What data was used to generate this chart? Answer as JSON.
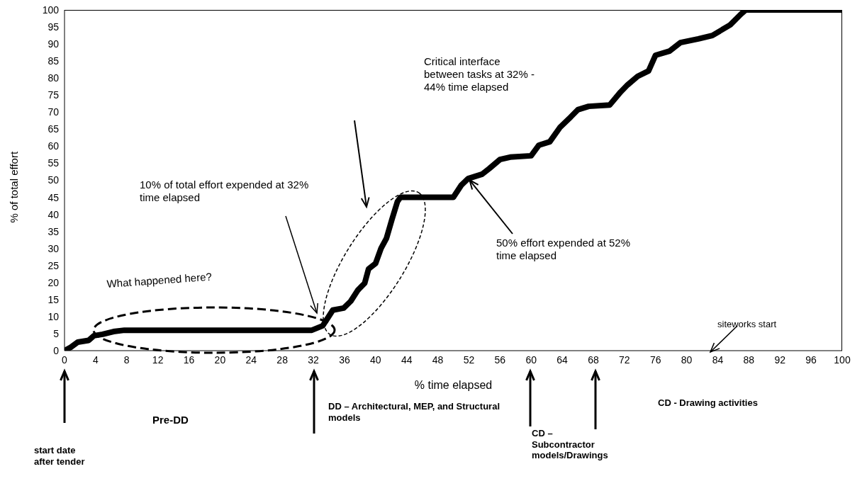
{
  "chart_data": {
    "type": "line",
    "xlabel": "% time elapsed",
    "ylabel": "% of total effort",
    "x": [
      0,
      0.8,
      1.7,
      3.1,
      3.8,
      4.9,
      6.3,
      7.7,
      31.8,
      33.2,
      33.8,
      34.5,
      35.9,
      36.8,
      37.7,
      38.6,
      39.1,
      40,
      40.7,
      41.4,
      42.1,
      42.8,
      43.2,
      50,
      51,
      51.9,
      53.7,
      54.6,
      56,
      57.3,
      60,
      61,
      62.4,
      63.7,
      65.1,
      66,
      67.4,
      70.1,
      71.5,
      72.4,
      73.7,
      75.1,
      76,
      77.8,
      79.2,
      81.5,
      83.3,
      85.6,
      87,
      87.6,
      100
    ],
    "series": [
      {
        "color": "#000000",
        "values": [
          0,
          1,
          2.5,
          3,
          4.4,
          4.8,
          5.6,
          6,
          6,
          7.3,
          9.4,
          11.9,
          12.5,
          14.5,
          17.7,
          19.8,
          24,
          25.6,
          30,
          33,
          38.5,
          43.7,
          45,
          45,
          48.5,
          50.5,
          51.8,
          53.4,
          56.1,
          56.8,
          57.2,
          60.3,
          61.3,
          65.5,
          68.6,
          70.7,
          71.7,
          72.1,
          75.9,
          78,
          80.5,
          82.1,
          86.7,
          87.9,
          90.4,
          91.5,
          92.5,
          95.6,
          98.8,
          100,
          100
        ]
      }
    ],
    "xlim": [
      0,
      100
    ],
    "xticks": [
      0,
      4,
      8,
      12,
      16,
      20,
      24,
      28,
      32,
      36,
      40,
      44,
      48,
      52,
      56,
      60,
      64,
      68,
      72,
      76,
      80,
      84,
      88,
      92,
      96,
      100
    ],
    "ylim": [
      0,
      100
    ],
    "yticks": [
      0,
      5,
      10,
      15,
      20,
      25,
      30,
      35,
      40,
      45,
      50,
      55,
      60,
      65,
      70,
      75,
      80,
      85,
      90,
      95,
      100
    ],
    "grid": false,
    "legend": false,
    "marker": "none",
    "line_style": "solid",
    "annotations": [
      "Critical interface between tasks at 32% - 44% time elapsed",
      "10% of total effort expended at 32% time elapsed",
      "What happened here?",
      {
        "text": "50% effort expended at 52% time elapsed",
        "x": 51.9,
        "y": 50.5
      },
      "siteworks start",
      "start date after tender",
      "Pre-DD",
      "DD – Architectural, MEP, and Structural models",
      "CD – Subcontractor models/Drawings",
      "CD - Drawing activities"
    ]
  }
}
